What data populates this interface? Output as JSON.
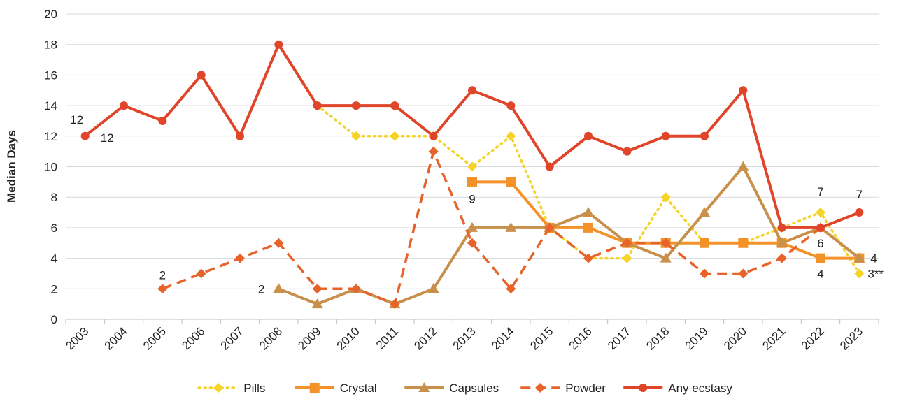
{
  "chart_data": {
    "type": "line",
    "y_label": "Median Days",
    "categories": [
      "2003",
      "2004",
      "2005",
      "2006",
      "2007",
      "2008",
      "2009",
      "2010",
      "2011",
      "2012",
      "2013",
      "2014",
      "2015",
      "2016",
      "2017",
      "2018",
      "2019",
      "2020",
      "2021",
      "2022",
      "2023"
    ],
    "ylim": [
      0,
      20
    ],
    "yticks": [
      0,
      2,
      4,
      6,
      8,
      10,
      12,
      14,
      16,
      18,
      20
    ],
    "grid": true,
    "legend": "bottom",
    "series": [
      {
        "name": "Pills",
        "color": "#f5d327",
        "dash": "dotted",
        "marker": "diamond",
        "values": [
          null,
          null,
          null,
          null,
          null,
          null,
          14,
          12,
          12,
          12,
          10,
          12,
          6,
          4,
          4,
          8,
          5,
          5,
          6,
          7,
          3
        ],
        "value_labels": [
          null,
          null,
          null,
          null,
          null,
          null,
          null,
          null,
          null,
          null,
          null,
          null,
          null,
          null,
          null,
          null,
          null,
          null,
          null,
          "7",
          "3**"
        ]
      },
      {
        "name": "Crystal",
        "color": "#f4922a",
        "dash": "solid",
        "marker": "square",
        "values": [
          null,
          null,
          null,
          null,
          null,
          null,
          null,
          null,
          null,
          null,
          9,
          9,
          6,
          6,
          5,
          5,
          5,
          5,
          5,
          4,
          4
        ],
        "value_labels": [
          null,
          null,
          null,
          null,
          null,
          null,
          null,
          null,
          null,
          null,
          "9",
          null,
          null,
          null,
          null,
          null,
          null,
          null,
          null,
          "4",
          "4"
        ]
      },
      {
        "name": "Capsules",
        "color": "#c8904a",
        "dash": "solid",
        "marker": "triangle",
        "values": [
          null,
          null,
          null,
          null,
          null,
          2,
          1,
          2,
          1,
          2,
          6,
          6,
          6,
          7,
          5,
          4,
          7,
          10,
          5,
          6,
          4
        ],
        "value_labels": [
          null,
          null,
          null,
          null,
          null,
          "2",
          null,
          null,
          null,
          null,
          null,
          null,
          null,
          null,
          null,
          null,
          null,
          null,
          null,
          null,
          null
        ]
      },
      {
        "name": "Powder",
        "color": "#e8632a",
        "dash": "dashed",
        "marker": "diamond",
        "values": [
          null,
          null,
          2,
          3,
          4,
          5,
          2,
          2,
          1,
          11,
          5,
          2,
          6,
          4,
          5,
          5,
          3,
          3,
          4,
          6,
          null
        ],
        "value_labels": [
          null,
          null,
          "2",
          null,
          null,
          null,
          null,
          null,
          null,
          null,
          null,
          null,
          null,
          null,
          null,
          null,
          null,
          null,
          null,
          "6",
          null
        ]
      },
      {
        "name": "Any ecstasy",
        "color": "#e0452a",
        "dash": "solid",
        "marker": "circle",
        "values": [
          12,
          14,
          13,
          16,
          12,
          18,
          14,
          14,
          14,
          12,
          15,
          14,
          10,
          12,
          11,
          12,
          12,
          15,
          6,
          6,
          7
        ],
        "value_labels": [
          "12",
          null,
          null,
          null,
          null,
          null,
          null,
          null,
          null,
          null,
          null,
          null,
          null,
          null,
          null,
          null,
          null,
          null,
          null,
          null,
          "7"
        ]
      }
    ],
    "annotations": [
      "12"
    ]
  }
}
